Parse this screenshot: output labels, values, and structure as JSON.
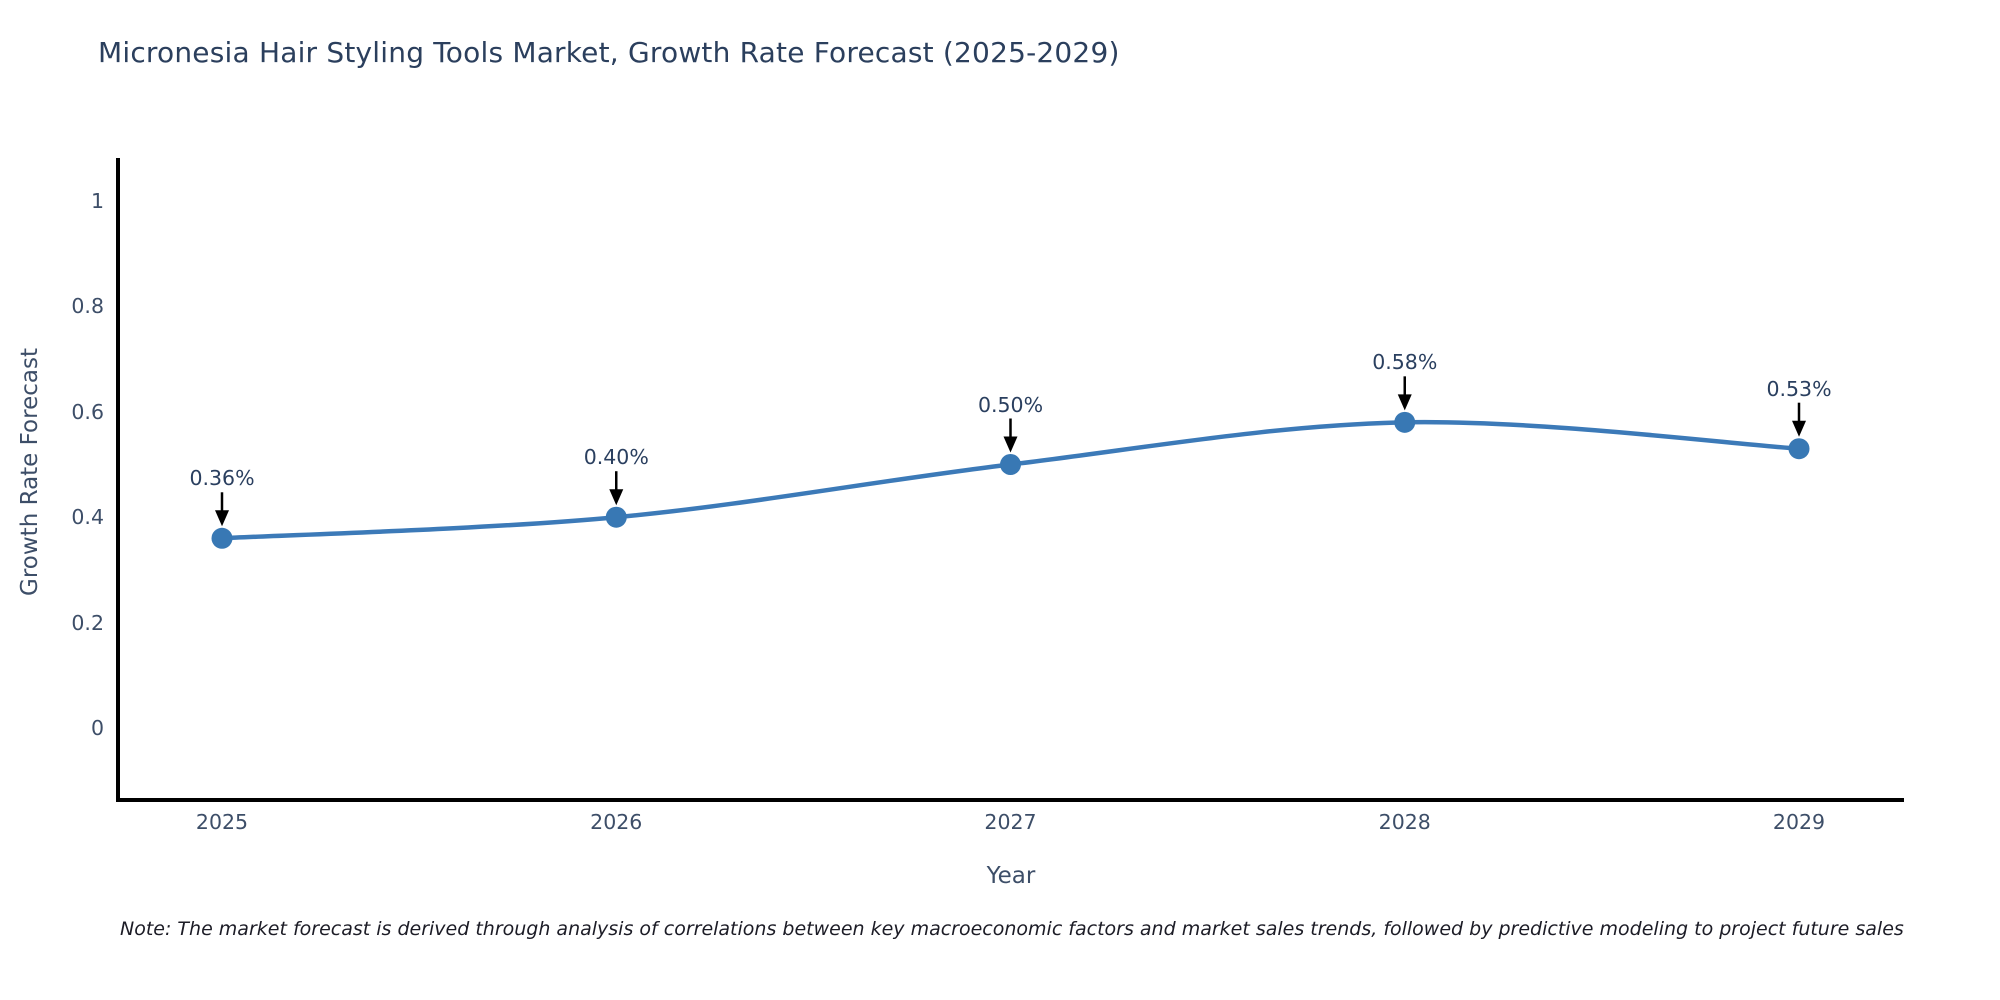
{
  "chart_data": {
    "type": "line",
    "line_shape": "spline",
    "title": "Micronesia Hair Styling Tools Market, Growth Rate Forecast (2025-2029)",
    "xlabel": "Year",
    "ylabel": "Growth Rate Forecast",
    "categories": [
      "2025",
      "2026",
      "2027",
      "2028",
      "2029"
    ],
    "values": [
      0.36,
      0.4,
      0.5,
      0.58,
      0.53
    ],
    "point_labels": [
      "0.36%",
      "0.40%",
      "0.50%",
      "0.58%",
      "0.53%"
    ],
    "y_ticks": [
      {
        "value": 0,
        "label": "0"
      },
      {
        "value": 0.2,
        "label": "0.2"
      },
      {
        "value": 0.4,
        "label": "0.4"
      },
      {
        "value": 0.6,
        "label": "0.6"
      },
      {
        "value": 0.8,
        "label": "0.8"
      },
      {
        "value": 1,
        "label": "1"
      }
    ],
    "ylim": [
      -0.14,
      1.08
    ],
    "grid": false,
    "legend": false,
    "note": "Note: The market forecast is derived through analysis of correlations between key macroeconomic factors and market sales trends, followed by predictive modeling to project future sales",
    "colors": {
      "line": "#3c7ab8",
      "marker": "#3878b4",
      "axis": "#000000",
      "title_text": "#2b3f5d",
      "tick_text": "#3d4e68",
      "annotation_text": "#2a3f5f",
      "arrow": "#000000",
      "note_text": "#1c1c26"
    }
  }
}
